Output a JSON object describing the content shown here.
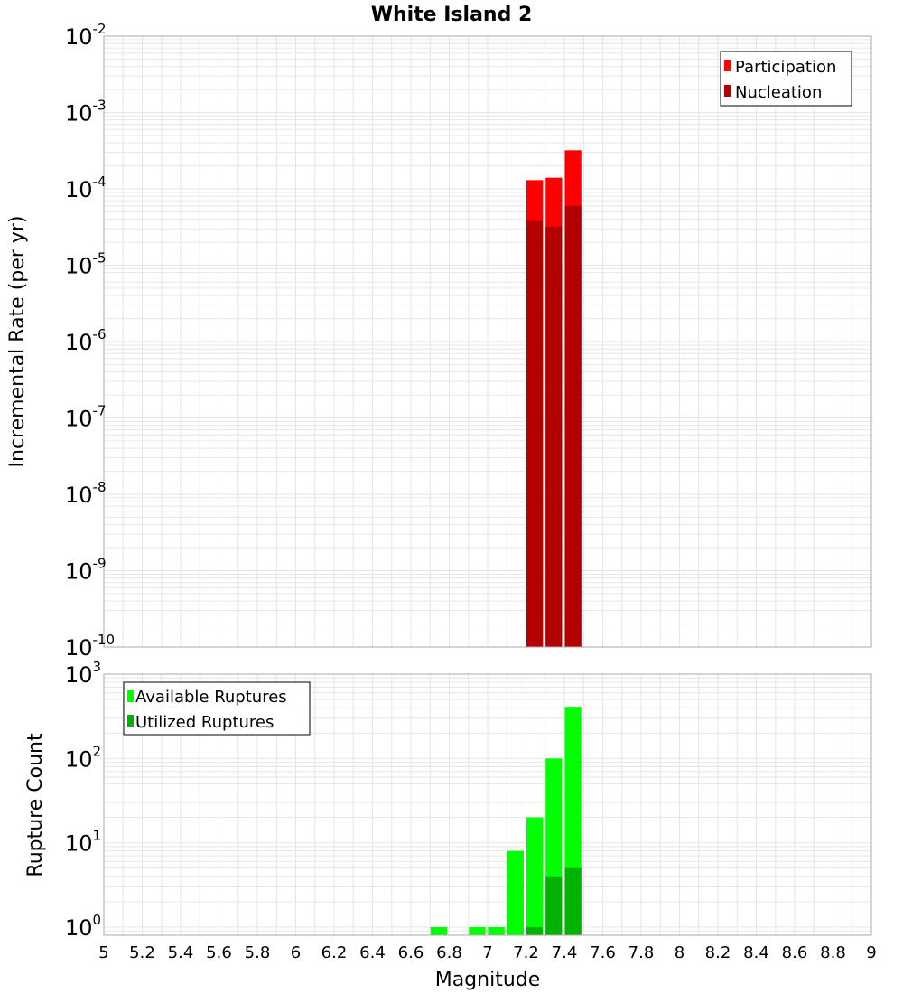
{
  "title": "White Island 2",
  "colors": {
    "participation": "#ff0000",
    "nucleation": "#b30000",
    "available": "#00ff00",
    "utilized": "#00b300",
    "grid": "#e6e6e6",
    "frame": "#aaaaaa"
  },
  "chart_data": [
    {
      "type": "bar",
      "title": "White Island 2",
      "xlabel": "Magnitude",
      "ylabel": "Incremental Rate (per yr)",
      "yscale": "log",
      "xlim": [
        5,
        9
      ],
      "ylim": [
        1e-10,
        0.01
      ],
      "ytick_exponents": [
        -10,
        -9,
        -8,
        -7,
        -6,
        -5,
        -4,
        -3,
        -2
      ],
      "ytick_base": "10",
      "bin_width": 0.1,
      "legend_position": "top-right",
      "series": [
        {
          "name": "Participation",
          "x": [
            7.25,
            7.35,
            7.45
          ],
          "values": [
            0.00013,
            0.00014,
            0.00032
          ]
        },
        {
          "name": "Nucleation",
          "x": [
            7.25,
            7.35,
            7.45
          ],
          "values": [
            3.8e-05,
            3.2e-05,
            6e-05
          ]
        }
      ]
    },
    {
      "type": "bar",
      "xlabel": "Magnitude",
      "ylabel": "Rupture Count",
      "yscale": "log",
      "xlim": [
        5,
        9
      ],
      "ylim": [
        0.8,
        1000
      ],
      "ytick_exponents": [
        0,
        1,
        2,
        3
      ],
      "ytick_base": "10",
      "bin_width": 0.1,
      "legend_position": "top-left",
      "xticks": [
        "5",
        "5.2",
        "5.4",
        "5.6",
        "5.8",
        "6",
        "6.2",
        "6.4",
        "6.6",
        "6.8",
        "7",
        "7.2",
        "7.4",
        "7.6",
        "7.8",
        "8",
        "8.2",
        "8.4",
        "8.6",
        "8.8",
        "9"
      ],
      "series": [
        {
          "name": "Available Ruptures",
          "x": [
            6.75,
            6.95,
            7.05,
            7.15,
            7.25,
            7.35,
            7.45
          ],
          "values": [
            1,
            1,
            1,
            8,
            20,
            100,
            410
          ]
        },
        {
          "name": "Utilized Ruptures",
          "x": [
            7.25,
            7.35,
            7.45
          ],
          "values": [
            1,
            4,
            5
          ]
        }
      ]
    }
  ]
}
